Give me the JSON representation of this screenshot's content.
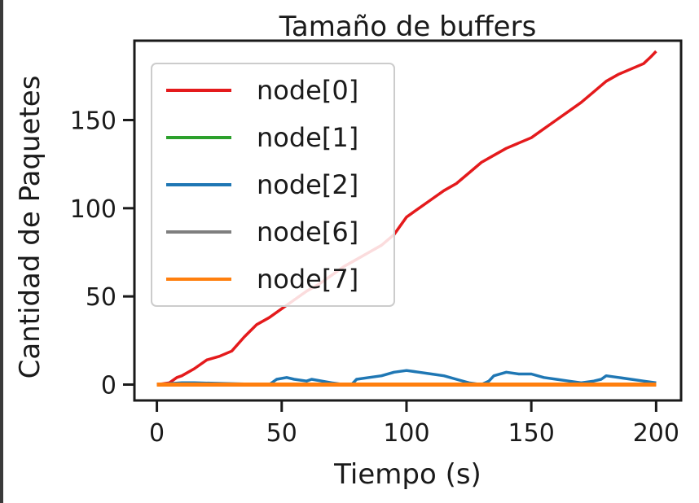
{
  "chart_data": {
    "type": "line",
    "title": "Tamaño de buffers",
    "xlabel": "Tiempo (s)",
    "ylabel": "Cantidad de Paquetes",
    "xlim": [
      -9,
      210
    ],
    "ylim": [
      -9,
      195
    ],
    "xticks": [
      0,
      50,
      100,
      150,
      200
    ],
    "yticks": [
      0,
      50,
      100,
      150
    ],
    "legend_position": "top-left",
    "grid": false,
    "series": [
      {
        "name": "node[0]",
        "color": "#e41a1c",
        "x": [
          0,
          5,
          8,
          10,
          15,
          20,
          25,
          30,
          35,
          40,
          45,
          50,
          55,
          60,
          65,
          70,
          75,
          80,
          85,
          90,
          95,
          100,
          105,
          110,
          115,
          120,
          125,
          130,
          135,
          140,
          145,
          150,
          155,
          160,
          165,
          170,
          175,
          180,
          185,
          190,
          195,
          198,
          200
        ],
        "y": [
          0,
          1,
          4,
          5,
          9,
          14,
          16,
          19,
          27,
          34,
          38,
          43,
          48,
          53,
          57,
          62,
          67,
          71,
          75,
          79,
          85,
          95,
          100,
          105,
          110,
          114,
          120,
          126,
          130,
          134,
          137,
          140,
          145,
          150,
          155,
          160,
          166,
          172,
          176,
          179,
          182,
          186,
          189
        ]
      },
      {
        "name": "node[1]",
        "color": "#2ca02c",
        "x": [
          0,
          50,
          100,
          150,
          200
        ],
        "y": [
          0,
          0,
          0,
          0,
          0
        ]
      },
      {
        "name": "node[2]",
        "color": "#1f77b4",
        "x": [
          0,
          10,
          15,
          45,
          48,
          52,
          55,
          60,
          62,
          70,
          75,
          78,
          80,
          85,
          90,
          95,
          100,
          105,
          110,
          115,
          120,
          125,
          130,
          133,
          135,
          140,
          145,
          150,
          155,
          160,
          165,
          170,
          175,
          178,
          180,
          185,
          190,
          195,
          200
        ],
        "y": [
          0,
          1,
          1,
          0,
          3,
          4,
          3,
          2,
          3,
          1,
          0,
          0,
          3,
          4,
          5,
          7,
          8,
          7,
          6,
          5,
          3,
          1,
          0,
          2,
          5,
          7,
          6,
          6,
          4,
          3,
          2,
          1,
          2,
          3,
          5,
          4,
          3,
          2,
          1
        ]
      },
      {
        "name": "node[6]",
        "color": "#7f7f7f",
        "x": [
          0,
          50,
          100,
          150,
          200
        ],
        "y": [
          0,
          0,
          0,
          0,
          0
        ]
      },
      {
        "name": "node[7]",
        "color": "#ff7f0e",
        "x": [
          0,
          50,
          100,
          150,
          200
        ],
        "y": [
          0,
          0,
          0,
          0,
          0
        ]
      }
    ]
  }
}
